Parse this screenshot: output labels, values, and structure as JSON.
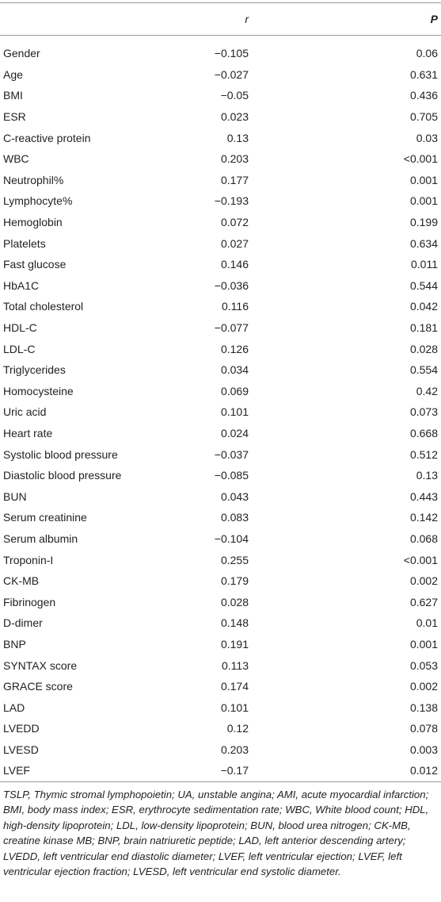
{
  "table": {
    "header": [
      "r",
      "P"
    ],
    "rows": [
      [
        "Gender",
        "−0.105",
        "0.06"
      ],
      [
        "Age",
        "−0.027",
        "0.631"
      ],
      [
        "BMI",
        "−0.05",
        "0.436"
      ],
      [
        "ESR",
        "0.023",
        "0.705"
      ],
      [
        "C-reactive protein",
        "0.13",
        "0.03"
      ],
      [
        "WBC",
        "0.203",
        "<0.001"
      ],
      [
        "Neutrophil%",
        "0.177",
        "0.001"
      ],
      [
        "Lymphocyte%",
        "−0.193",
        "0.001"
      ],
      [
        "Hemoglobin",
        "0.072",
        "0.199"
      ],
      [
        "Platelets",
        "0.027",
        "0.634"
      ],
      [
        "Fast glucose",
        "0.146",
        "0.011"
      ],
      [
        "HbA1C",
        "−0.036",
        "0.544"
      ],
      [
        "Total cholesterol",
        "0.116",
        "0.042"
      ],
      [
        "HDL-C",
        "−0.077",
        "0.181"
      ],
      [
        "LDL-C",
        "0.126",
        "0.028"
      ],
      [
        "Triglycerides",
        "0.034",
        "0.554"
      ],
      [
        "Homocysteine",
        "0.069",
        "0.42"
      ],
      [
        "Uric acid",
        "0.101",
        "0.073"
      ],
      [
        "Heart rate",
        "0.024",
        "0.668"
      ],
      [
        "Systolic blood pressure",
        "−0.037",
        "0.512"
      ],
      [
        "Diastolic blood pressure",
        "−0.085",
        "0.13"
      ],
      [
        "BUN",
        "0.043",
        "0.443"
      ],
      [
        "Serum creatinine",
        "0.083",
        "0.142"
      ],
      [
        "Serum albumin",
        "−0.104",
        "0.068"
      ],
      [
        "Troponin-I",
        "0.255",
        "<0.001"
      ],
      [
        "CK-MB",
        "0.179",
        "0.002"
      ],
      [
        "Fibrinogen",
        "0.028",
        "0.627"
      ],
      [
        "D-dimer",
        "0.148",
        "0.01"
      ],
      [
        "BNP",
        "0.191",
        "0.001"
      ],
      [
        "SYNTAX score",
        "0.113",
        "0.053"
      ],
      [
        "GRACE score",
        "0.174",
        "0.002"
      ],
      [
        "LAD",
        "0.101",
        "0.138"
      ],
      [
        "LVEDD",
        "0.12",
        "0.078"
      ],
      [
        "LVESD",
        "0.203",
        "0.003"
      ],
      [
        "LVEF",
        "−0.17",
        "0.012"
      ]
    ],
    "footnote": "TSLP, Thymic stromal lymphopoietin; UA, unstable angina; AMI, acute myocardial infarction; BMI, body mass index; ESR, erythrocyte sedimentation rate; WBC, White blood count; HDL, high-density lipoprotein; LDL, low-density lipoprotein; BUN, blood urea nitrogen; CK-MB, creatine kinase MB; BNP, brain natriuretic peptide; LAD, left anterior descending artery; LVEDD, left ventricular end diastolic diameter; LVEF, left ventricular ejection; LVEF, left ventricular ejection fraction; LVESD, left ventricular end systolic diameter."
  }
}
